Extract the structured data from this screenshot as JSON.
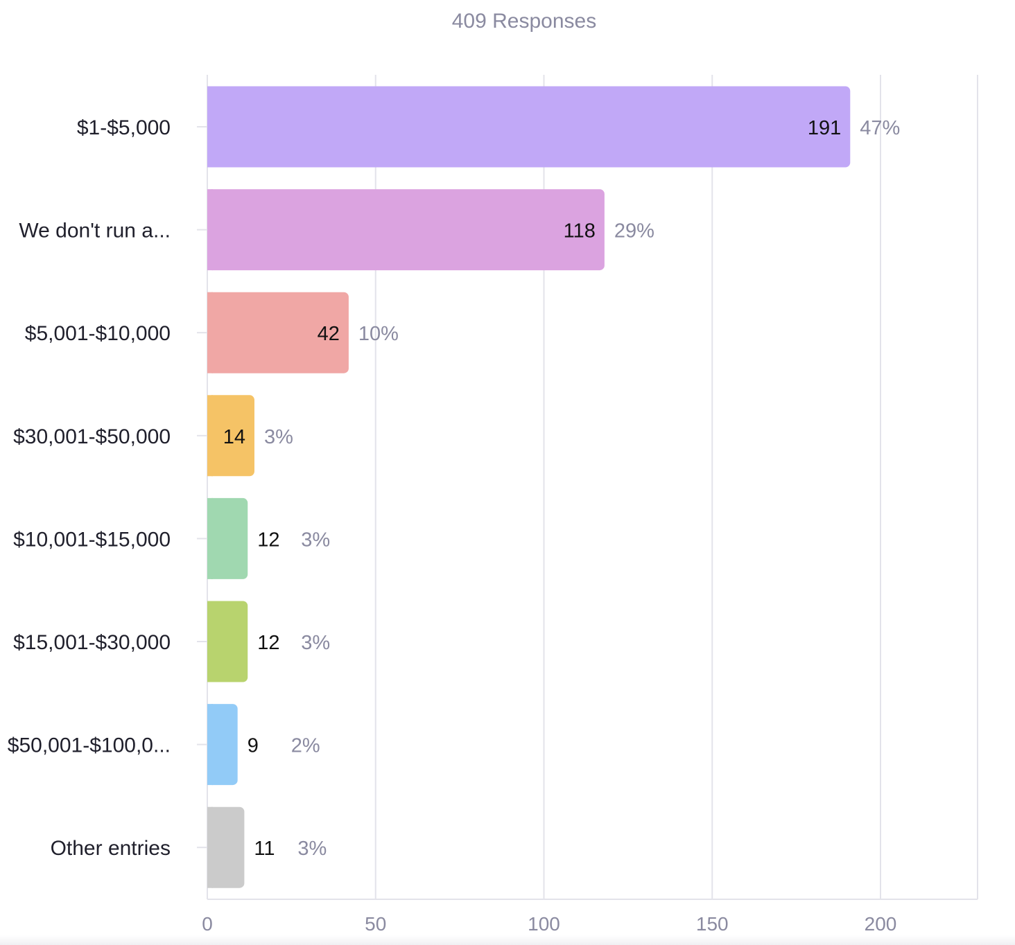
{
  "chart_data": {
    "type": "bar",
    "orientation": "horizontal",
    "title": "409 Responses",
    "categories": [
      "$1-$5,000",
      "We don't run a...",
      "$5,001-$10,000",
      "$30,001-$50,000",
      "$10,001-$15,000",
      "$15,001-$30,000",
      "$50,001-$100,0...",
      "Other entries"
    ],
    "values": [
      191,
      118,
      42,
      14,
      12,
      12,
      9,
      11
    ],
    "percent_labels": [
      "47%",
      "29%",
      "10%",
      "3%",
      "3%",
      "3%",
      "2%",
      "3%"
    ],
    "colors": [
      "#c1a8f7",
      "#dba3e0",
      "#f0a7a5",
      "#f5c366",
      "#a0d8b0",
      "#b8d36e",
      "#92cbf7",
      "#cbcbcb"
    ],
    "x_ticks": [
      0,
      50,
      100,
      150,
      200
    ],
    "xlim": [
      0,
      229
    ],
    "grid": true,
    "xlabel": "",
    "ylabel": ""
  }
}
